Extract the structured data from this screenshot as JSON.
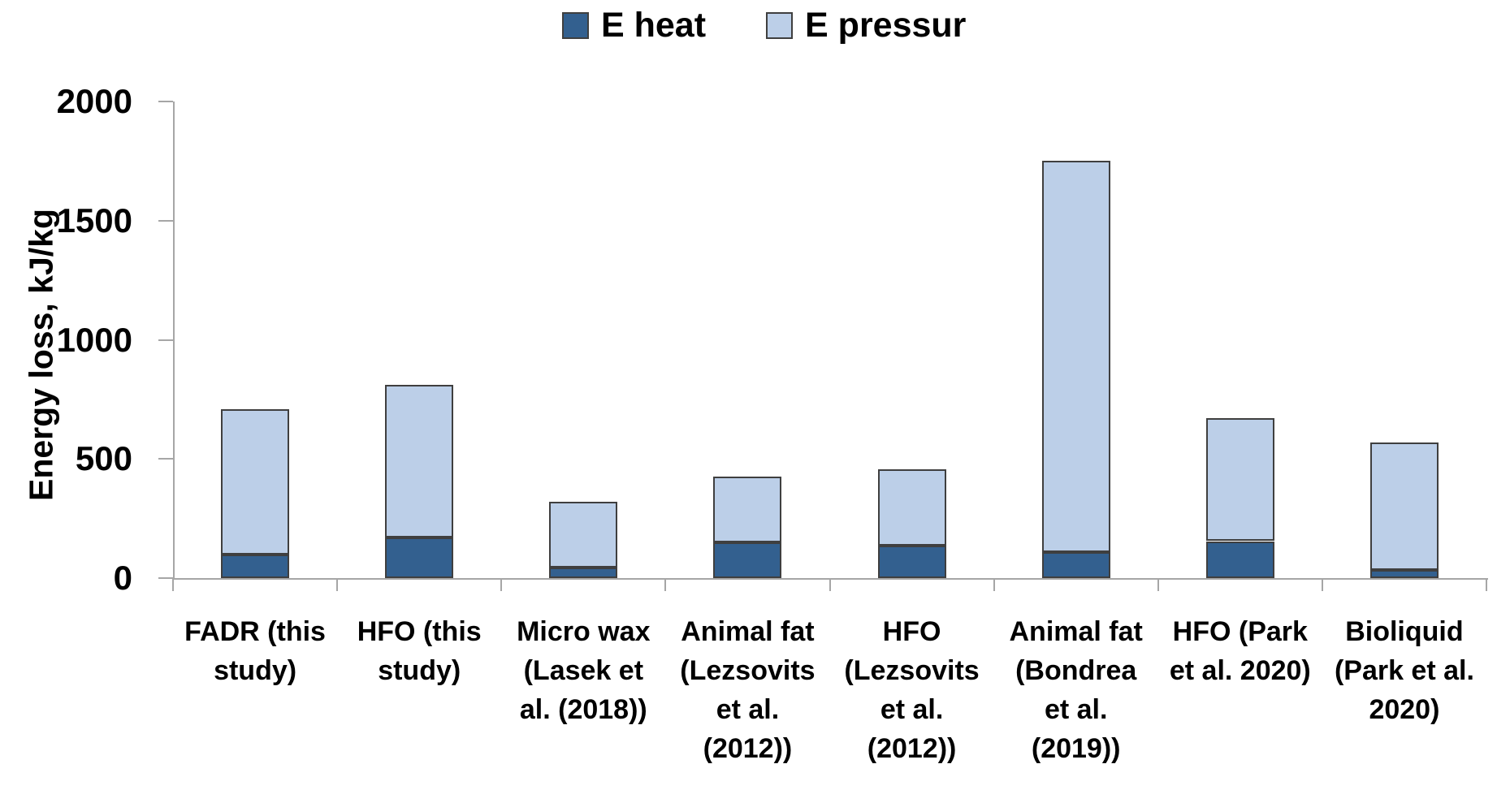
{
  "chart_data": {
    "type": "bar",
    "stacked": true,
    "title": "",
    "ylabel": "Energy loss, kJ/kg",
    "xlabel": "",
    "ylim": [
      0,
      2000
    ],
    "yticks": [
      0,
      500,
      1000,
      1500,
      2000
    ],
    "grid": false,
    "legend_position": "top-center",
    "categories": [
      "FADR (this\nstudy)",
      "HFO (this\nstudy)",
      "Micro wax\n(Lasek et\nal. (2018))",
      "Animal fat\n(Lezsovits\net al.\n(2012))",
      "HFO\n(Lezsovits\net al.\n(2012))",
      "Animal fat\n(Bondrea\net al.\n(2019))",
      "HFO (Park\net al. 2020)",
      "Bioliquid\n(Park et al.\n2020)"
    ],
    "series": [
      {
        "name": "E heat",
        "color": "#33608F",
        "values": [
          100,
          170,
          45,
          150,
          135,
          110,
          155,
          35
        ]
      },
      {
        "name": "E pressur",
        "color": "#BCCFE8",
        "values": [
          610,
          640,
          275,
          275,
          320,
          1640,
          515,
          535
        ]
      }
    ]
  },
  "colors": {
    "bar_border": "#3f3f3f",
    "axis": "#a6a6a6",
    "text": "#000000",
    "background": "#ffffff"
  }
}
